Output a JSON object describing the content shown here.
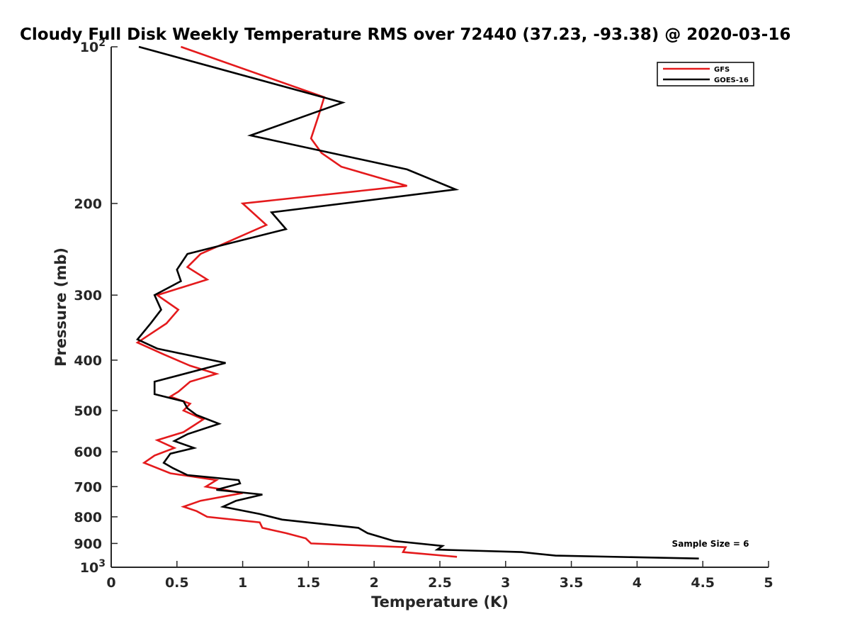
{
  "chart_data": {
    "type": "line",
    "title": "Cloudy Full Disk Weekly Temperature RMS over 72440 (37.23, -93.38) @ 2020-03-16",
    "xlabel": "Temperature (K)",
    "ylabel": "Pressure (mb)",
    "xlim": [
      0,
      5
    ],
    "ylim": [
      100,
      1000
    ],
    "y_scale": "log",
    "y_reversed": true,
    "x_ticks": [
      "0",
      "0.5",
      "1",
      "1.5",
      "2",
      "2.5",
      "3",
      "3.5",
      "4",
      "4.5",
      "5"
    ],
    "y_ticks": [
      {
        "value": 100,
        "base": "10",
        "exp": "2",
        "label": ""
      },
      {
        "value": 200,
        "label": "200"
      },
      {
        "value": 300,
        "label": "300"
      },
      {
        "value": 400,
        "label": "400"
      },
      {
        "value": 500,
        "label": "500"
      },
      {
        "value": 600,
        "label": "600"
      },
      {
        "value": 700,
        "label": "700"
      },
      {
        "value": 800,
        "label": "800"
      },
      {
        "value": 900,
        "label": "900"
      },
      {
        "value": 1000,
        "base": "10",
        "exp": "3",
        "label": ""
      }
    ],
    "grid": false,
    "legend_position": "top-right",
    "annotation": "Sample Size = 6",
    "series": [
      {
        "name": "GFS",
        "color": "#e41a1c",
        "points": [
          [
            0.53,
            100
          ],
          [
            1.62,
            125
          ],
          [
            1.58,
            135
          ],
          [
            1.52,
            150
          ],
          [
            1.6,
            160
          ],
          [
            1.75,
            170
          ],
          [
            2.25,
            185
          ],
          [
            1.0,
            200
          ],
          [
            1.18,
            220
          ],
          [
            0.68,
            250
          ],
          [
            0.58,
            265
          ],
          [
            0.73,
            280
          ],
          [
            0.35,
            300
          ],
          [
            0.51,
            320
          ],
          [
            0.42,
            340
          ],
          [
            0.2,
            370
          ],
          [
            0.4,
            390
          ],
          [
            0.6,
            410
          ],
          [
            0.8,
            425
          ],
          [
            0.6,
            440
          ],
          [
            0.51,
            460
          ],
          [
            0.45,
            470
          ],
          [
            0.6,
            485
          ],
          [
            0.55,
            500
          ],
          [
            0.7,
            520
          ],
          [
            0.55,
            550
          ],
          [
            0.35,
            570
          ],
          [
            0.48,
            590
          ],
          [
            0.33,
            610
          ],
          [
            0.25,
            630
          ],
          [
            0.45,
            660
          ],
          [
            0.8,
            680
          ],
          [
            0.72,
            700
          ],
          [
            1.0,
            720
          ],
          [
            0.68,
            745
          ],
          [
            0.55,
            765
          ],
          [
            0.65,
            780
          ],
          [
            0.73,
            800
          ],
          [
            1.13,
            820
          ],
          [
            1.15,
            840
          ],
          [
            1.33,
            860
          ],
          [
            1.48,
            880
          ],
          [
            1.52,
            900
          ],
          [
            2.24,
            915
          ],
          [
            2.22,
            935
          ],
          [
            2.63,
            955
          ]
        ]
      },
      {
        "name": "GOES-16",
        "color": "#000000",
        "points": [
          [
            0.21,
            100
          ],
          [
            1.76,
            128
          ],
          [
            1.06,
            148
          ],
          [
            2.25,
            172
          ],
          [
            2.62,
            188
          ],
          [
            1.22,
            208
          ],
          [
            1.33,
            224
          ],
          [
            0.58,
            250
          ],
          [
            0.5,
            268
          ],
          [
            0.53,
            282
          ],
          [
            0.33,
            300
          ],
          [
            0.38,
            320
          ],
          [
            0.3,
            340
          ],
          [
            0.2,
            365
          ],
          [
            0.35,
            380
          ],
          [
            0.87,
            405
          ],
          [
            0.33,
            440
          ],
          [
            0.33,
            465
          ],
          [
            0.55,
            480
          ],
          [
            0.58,
            495
          ],
          [
            0.65,
            510
          ],
          [
            0.82,
            530
          ],
          [
            0.58,
            555
          ],
          [
            0.48,
            572
          ],
          [
            0.63,
            590
          ],
          [
            0.45,
            605
          ],
          [
            0.4,
            630
          ],
          [
            0.47,
            645
          ],
          [
            0.58,
            665
          ],
          [
            0.97,
            680
          ],
          [
            0.98,
            690
          ],
          [
            0.8,
            710
          ],
          [
            1.15,
            725
          ],
          [
            0.95,
            745
          ],
          [
            0.85,
            765
          ],
          [
            1.13,
            790
          ],
          [
            1.3,
            810
          ],
          [
            1.88,
            840
          ],
          [
            1.95,
            860
          ],
          [
            2.15,
            890
          ],
          [
            2.52,
            910
          ],
          [
            2.48,
            925
          ],
          [
            3.12,
            935
          ],
          [
            3.38,
            950
          ],
          [
            4.47,
            962
          ]
        ]
      }
    ]
  }
}
